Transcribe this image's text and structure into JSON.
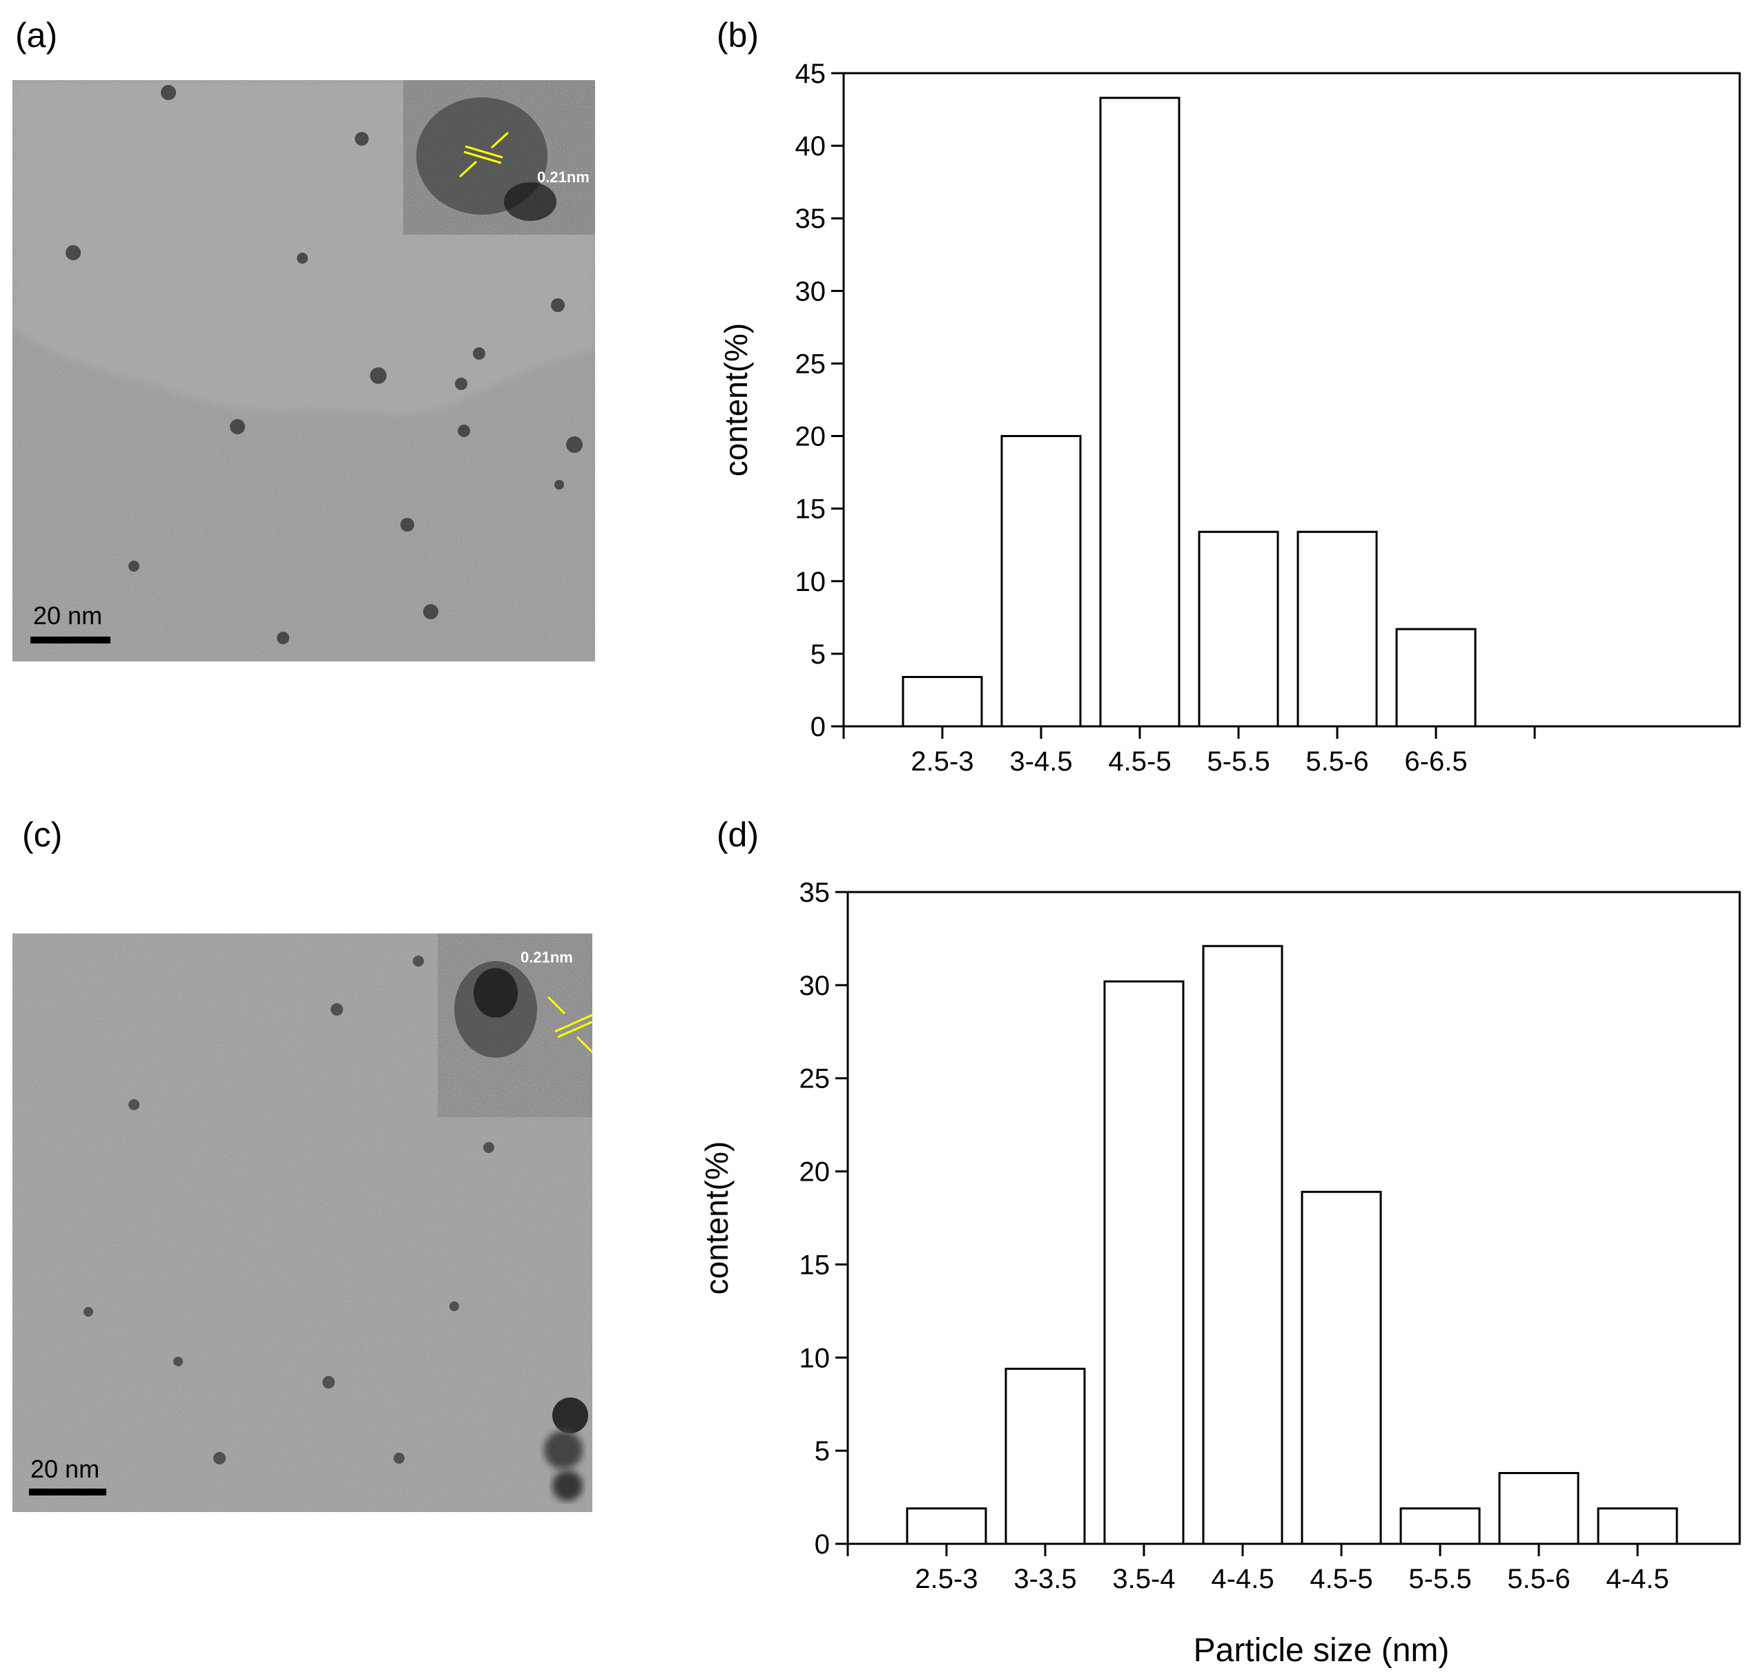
{
  "panels": {
    "a": {
      "label": "(a)",
      "scale_bar": "20 nm",
      "inset_spacing": "0.21nm"
    },
    "b": {
      "label": "(b)"
    },
    "c": {
      "label": "(c)",
      "scale_bar": "20 nm",
      "inset_spacing": "0.21nm"
    },
    "d": {
      "label": "(d)"
    }
  },
  "colors": {
    "bar_fill": "#ffffff",
    "bar_stroke": "#000000",
    "lattice_marker": "#ffff00",
    "tem_gray": "#8f8f8f"
  },
  "chart_data": [
    {
      "panel": "b",
      "type": "bar",
      "categories": [
        "2.5-3",
        "3-4.5",
        "4.5-5",
        "5-5.5",
        "5.5-6",
        "6-6.5"
      ],
      "values": [
        3.4,
        20,
        43.3,
        13.4,
        13.4,
        6.7
      ],
      "title": "",
      "xlabel": "",
      "ylabel": "content(%)",
      "ylim": [
        0,
        45
      ],
      "yticks": [
        0,
        5,
        10,
        15,
        20,
        25,
        30,
        35,
        40,
        45
      ],
      "grid": false
    },
    {
      "panel": "d",
      "type": "bar",
      "categories": [
        "2.5-3",
        "3-3.5",
        "3.5-4",
        "4-4.5",
        "4.5-5",
        "5-5.5",
        "5.5-6",
        "4-4.5"
      ],
      "values": [
        1.9,
        9.4,
        30.2,
        32.1,
        18.9,
        1.9,
        3.8,
        1.9
      ],
      "title": "",
      "xlabel": "Particle size (nm)",
      "ylabel": "content(%)",
      "ylim": [
        0,
        35
      ],
      "yticks": [
        0,
        5,
        10,
        15,
        20,
        25,
        30,
        35
      ],
      "grid": false
    }
  ]
}
